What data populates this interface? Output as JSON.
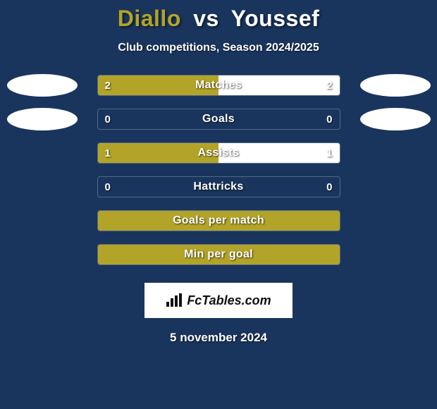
{
  "background_color": "#1a355d",
  "title": {
    "player1": "Diallo",
    "vs": "vs",
    "player2": "Youssef",
    "p1_color": "#b2a429",
    "vs_color": "#ffffff",
    "p2_color": "#ffffff",
    "fontsize": 32
  },
  "subtitle": "Club competitions, Season 2024/2025",
  "bar_colors": {
    "p1": "#b2a429",
    "p2": "#ffffff",
    "border": "rgba(255,255,255,0.25)"
  },
  "rows": [
    {
      "label": "Matches",
      "v1": "2",
      "v2": "2",
      "fill1_pct": 50,
      "fill2_pct": 50,
      "ellipse_left": true,
      "ellipse_right": true
    },
    {
      "label": "Goals",
      "v1": "0",
      "v2": "0",
      "fill1_pct": 0,
      "fill2_pct": 0,
      "ellipse_left": true,
      "ellipse_right": true
    },
    {
      "label": "Assists",
      "v1": "1",
      "v2": "1",
      "fill1_pct": 50,
      "fill2_pct": 50,
      "ellipse_left": false,
      "ellipse_right": false
    },
    {
      "label": "Hattricks",
      "v1": "0",
      "v2": "0",
      "fill1_pct": 0,
      "fill2_pct": 0,
      "ellipse_left": false,
      "ellipse_right": false
    },
    {
      "label": "Goals per match",
      "v1": "",
      "v2": "",
      "fill1_pct": 100,
      "fill2_pct": 0,
      "ellipse_left": false,
      "ellipse_right": false
    },
    {
      "label": "Min per goal",
      "v1": "",
      "v2": "",
      "fill1_pct": 100,
      "fill2_pct": 0,
      "ellipse_left": false,
      "ellipse_right": false
    }
  ],
  "logo_text": "FcTables.com",
  "date": "5 november 2024"
}
